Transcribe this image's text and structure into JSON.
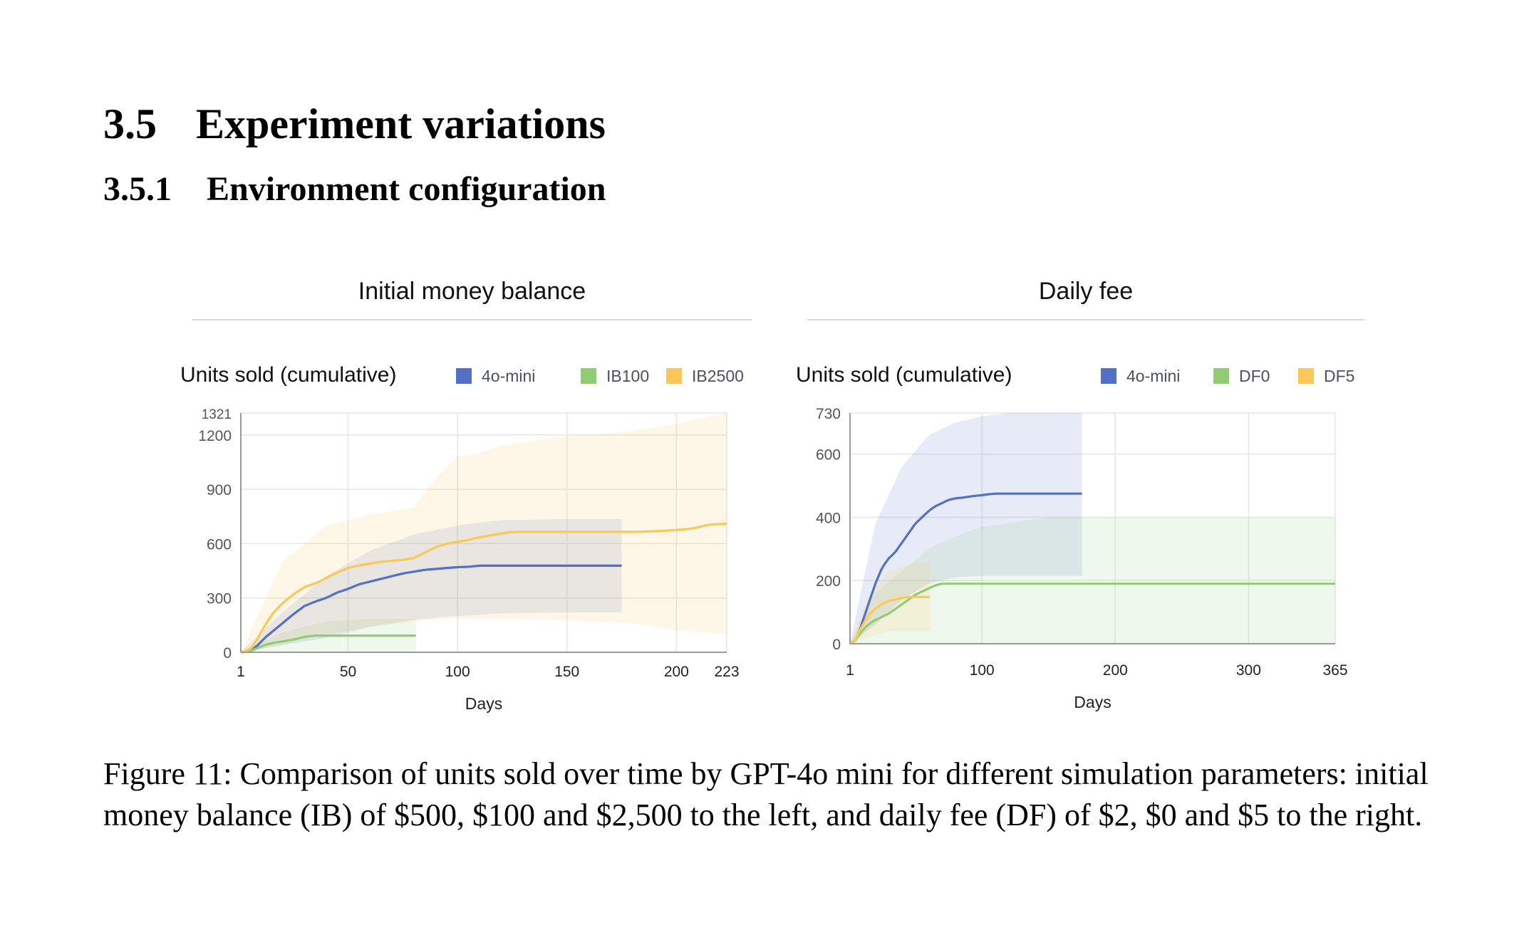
{
  "section": {
    "number": "3.5",
    "title": "Experiment variations"
  },
  "subsection": {
    "number": "3.5.1",
    "title": "Environment configuration"
  },
  "caption": "Figure 11: Comparison of units sold over time by GPT-4o mini for different simulation parameters: initial money balance (IB) of $500, $100 and $2,500 to the left, and daily fee (DF) of $2, $0 and $5 to the right.",
  "colors": {
    "blue": "#5470c6",
    "green": "#91cc75",
    "yellow": "#fac858"
  },
  "chart_data": [
    {
      "type": "area",
      "panel_title": "Initial money balance",
      "title": "Units sold (cumulative)",
      "xlabel": "Days",
      "ylabel": "",
      "xlim": [
        1,
        223
      ],
      "ylim": [
        0,
        1321
      ],
      "x_ticks": [
        1,
        50,
        100,
        150,
        200,
        223
      ],
      "y_ticks": [
        0,
        300,
        600,
        900,
        1200,
        1321
      ],
      "grid": true,
      "legend_position": "top-right",
      "series": [
        {
          "name": "4o-mini",
          "color": "#5470c6",
          "x": [
            1,
            5,
            8,
            12,
            16,
            20,
            25,
            30,
            35,
            40,
            45,
            50,
            55,
            60,
            65,
            70,
            75,
            80,
            85,
            90,
            95,
            100,
            105,
            110,
            115,
            120,
            130,
            150,
            175
          ],
          "y": [
            0,
            5,
            30,
            80,
            120,
            160,
            210,
            255,
            280,
            300,
            330,
            350,
            375,
            390,
            405,
            420,
            435,
            445,
            455,
            460,
            465,
            470,
            472,
            478,
            478,
            478,
            478,
            478,
            478
          ],
          "band": {
            "x": [
              1,
              20,
              40,
              60,
              80,
              100,
              120,
              150,
              175
            ],
            "lower": [
              0,
              40,
              80,
              140,
              180,
              200,
              215,
              220,
              220
            ],
            "upper": [
              0,
              220,
              420,
              560,
              650,
              700,
              730,
              735,
              735
            ]
          }
        },
        {
          "name": "IB100",
          "color": "#91cc75",
          "x": [
            1,
            5,
            8,
            12,
            16,
            20,
            25,
            30,
            35,
            40,
            50,
            60,
            70,
            81
          ],
          "y": [
            0,
            5,
            20,
            40,
            52,
            60,
            70,
            85,
            92,
            92,
            92,
            92,
            92,
            92
          ],
          "band": {
            "x": [
              1,
              20,
              40,
              60,
              81
            ],
            "lower": [
              0,
              0,
              0,
              0,
              0
            ],
            "upper": [
              0,
              110,
              170,
              185,
              185
            ]
          }
        },
        {
          "name": "IB2500",
          "color": "#fac858",
          "x": [
            1,
            5,
            8,
            12,
            16,
            20,
            25,
            30,
            35,
            40,
            45,
            50,
            55,
            60,
            65,
            70,
            75,
            80,
            85,
            90,
            95,
            100,
            105,
            110,
            115,
            120,
            125,
            130,
            140,
            150,
            160,
            170,
            180,
            190,
            200,
            205,
            210,
            215,
            223
          ],
          "y": [
            0,
            10,
            60,
            150,
            220,
            270,
            320,
            360,
            380,
            410,
            440,
            465,
            480,
            490,
            500,
            505,
            510,
            520,
            550,
            580,
            600,
            610,
            620,
            635,
            645,
            655,
            665,
            665,
            665,
            665,
            665,
            665,
            665,
            668,
            675,
            680,
            690,
            705,
            710
          ],
          "band": {
            "x": [
              1,
              20,
              40,
              60,
              80,
              90,
              100,
              110,
              120,
              140,
              160,
              180,
              200,
              223
            ],
            "lower": [
              0,
              40,
              100,
              140,
              170,
              180,
              185,
              185,
              185,
              180,
              170,
              160,
              120,
              100
            ],
            "upper": [
              0,
              500,
              700,
              760,
              800,
              960,
              1080,
              1100,
              1140,
              1180,
              1200,
              1220,
              1260,
              1321
            ]
          }
        }
      ]
    },
    {
      "type": "area",
      "panel_title": "Daily fee",
      "title": "Units sold (cumulative)",
      "xlabel": "Days",
      "ylabel": "",
      "xlim": [
        1,
        365
      ],
      "ylim": [
        0,
        730
      ],
      "x_ticks": [
        1,
        100,
        200,
        300,
        365
      ],
      "y_ticks": [
        0,
        200,
        400,
        600,
        730
      ],
      "grid": true,
      "legend_position": "top-right",
      "series": [
        {
          "name": "4o-mini",
          "color": "#5470c6",
          "x": [
            1,
            5,
            8,
            12,
            16,
            20,
            25,
            30,
            35,
            40,
            45,
            50,
            55,
            60,
            65,
            70,
            75,
            80,
            85,
            90,
            95,
            100,
            105,
            110,
            120,
            140,
            160,
            175
          ],
          "y": [
            0,
            10,
            40,
            90,
            140,
            190,
            240,
            270,
            290,
            320,
            350,
            380,
            400,
            420,
            435,
            445,
            455,
            460,
            462,
            465,
            468,
            470,
            473,
            475,
            475,
            475,
            475,
            475
          ],
          "band": {
            "x": [
              1,
              20,
              40,
              60,
              80,
              100,
              120,
              140,
              175
            ],
            "lower": [
              0,
              60,
              140,
              190,
              210,
              215,
              215,
              215,
              215
            ],
            "upper": [
              0,
              380,
              560,
              660,
              700,
              720,
              730,
              730,
              730
            ]
          }
        },
        {
          "name": "DF0",
          "color": "#91cc75",
          "x": [
            1,
            5,
            8,
            12,
            16,
            20,
            25,
            30,
            35,
            40,
            45,
            50,
            55,
            60,
            65,
            70,
            80,
            100,
            150,
            200,
            250,
            300,
            365
          ],
          "y": [
            0,
            10,
            30,
            50,
            65,
            75,
            85,
            95,
            110,
            125,
            140,
            155,
            165,
            175,
            185,
            190,
            190,
            190,
            190,
            190,
            190,
            190,
            190
          ],
          "band": {
            "x": [
              1,
              20,
              40,
              60,
              80,
              100,
              150,
              200,
              250,
              300,
              365
            ],
            "lower": [
              0,
              0,
              0,
              0,
              0,
              0,
              0,
              0,
              0,
              0,
              0
            ],
            "upper": [
              0,
              160,
              230,
              300,
              340,
              370,
              400,
              400,
              400,
              400,
              400
            ]
          }
        },
        {
          "name": "DF5",
          "color": "#fac858",
          "x": [
            1,
            5,
            8,
            12,
            16,
            20,
            25,
            30,
            35,
            40,
            45,
            50,
            55,
            61
          ],
          "y": [
            0,
            10,
            40,
            70,
            95,
            110,
            125,
            135,
            140,
            145,
            148,
            148,
            148,
            148
          ],
          "band": {
            "x": [
              1,
              15,
              30,
              45,
              61
            ],
            "lower": [
              0,
              20,
              40,
              40,
              40
            ],
            "upper": [
              0,
              150,
              230,
              250,
              260
            ]
          }
        }
      ]
    }
  ]
}
